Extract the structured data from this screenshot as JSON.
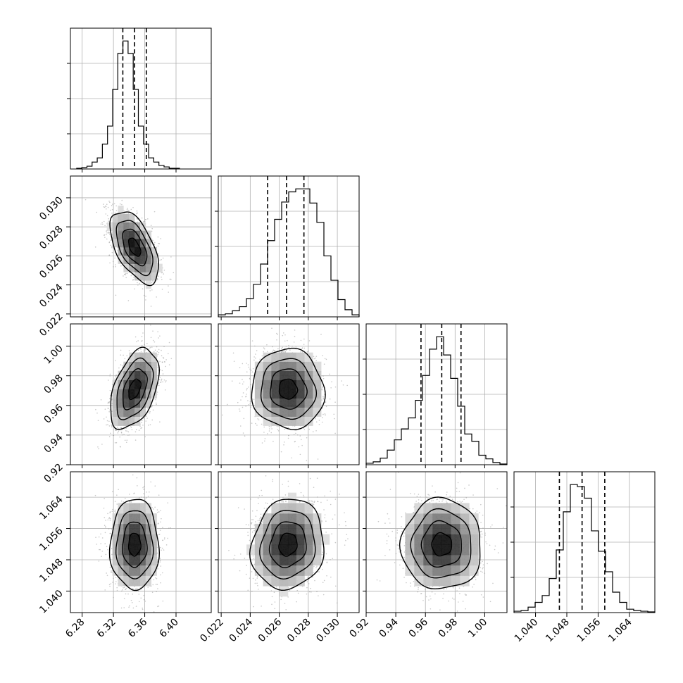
{
  "chart_data": {
    "type": "corner",
    "parameters": [
      {
        "range": [
          6.265,
          6.445
        ],
        "ticks": [
          6.28,
          6.32,
          6.36,
          6.4
        ],
        "tick_labels": [
          "6.28",
          "6.32",
          "6.36",
          "6.40"
        ],
        "quantiles": [
          6.332,
          6.347,
          6.362
        ],
        "hist": {
          "x0": 6.273,
          "dx": 0.00657,
          "counts": [
            1,
            2,
            4,
            10,
            16,
            36,
            62,
            115,
            167,
            185,
            167,
            115,
            62,
            36,
            16,
            10,
            5,
            3,
            1,
            1
          ]
        }
      },
      {
        "range": [
          0.0218,
          0.0315
        ],
        "ticks": [
          0.022,
          0.024,
          0.026,
          0.028,
          0.03
        ],
        "tick_labels": [
          "0.022",
          "0.024",
          "0.026",
          "0.028",
          "0.030"
        ],
        "quantiles": [
          0.0252,
          0.0265,
          0.0277
        ],
        "hist": {
          "x0": 0.0218,
          "dx": 0.000485,
          "counts": [
            2,
            3,
            6,
            10,
            18,
            32,
            52,
            75,
            96,
            113,
            123,
            126,
            126,
            112,
            93,
            60,
            36,
            17,
            7,
            2
          ]
        }
      },
      {
        "range": [
          0.92,
          1.015
        ],
        "ticks": [
          0.92,
          0.94,
          0.96,
          0.98,
          1.0
        ],
        "tick_labels": [
          "0.92",
          "0.94",
          "0.96",
          "0.98",
          "1.00"
        ],
        "quantiles": [
          0.957,
          0.971,
          0.984
        ],
        "hist": {
          "x0": 0.92,
          "dx": 0.00475,
          "counts": [
            2,
            4,
            9,
            20,
            34,
            49,
            64,
            88,
            122,
            158,
            175,
            150,
            118,
            80,
            42,
            32,
            13,
            8,
            3,
            1
          ]
        }
      },
      {
        "range": [
          1.0345,
          1.0705
        ],
        "ticks": [
          1.04,
          1.048,
          1.056,
          1.064
        ],
        "tick_labels": [
          "1.040",
          "1.048",
          "1.056",
          "1.064"
        ],
        "quantiles": [
          1.0461,
          1.0519,
          1.0577
        ],
        "hist": {
          "x0": 1.0345,
          "dx": 0.0018,
          "counts": [
            2,
            3,
            8,
            15,
            25,
            50,
            92,
            148,
            188,
            185,
            168,
            120,
            90,
            60,
            30,
            15,
            5,
            3,
            2,
            1
          ]
        }
      }
    ],
    "pairs": [
      {
        "x": 0,
        "y": 1,
        "mean": [
          6.347,
          0.0266
        ],
        "sd": [
          0.0155,
          0.00125
        ],
        "rho": -0.55
      },
      {
        "x": 0,
        "y": 2,
        "mean": [
          6.347,
          0.971
        ],
        "sd": [
          0.0155,
          0.0135
        ],
        "rho": 0.45
      },
      {
        "x": 1,
        "y": 2,
        "mean": [
          0.0266,
          0.971
        ],
        "sd": [
          0.00125,
          0.0135
        ],
        "rho": -0.05
      },
      {
        "x": 0,
        "y": 3,
        "mean": [
          6.347,
          1.0519
        ],
        "sd": [
          0.0155,
          0.0058
        ],
        "rho": 0.0
      },
      {
        "x": 1,
        "y": 3,
        "mean": [
          0.0266,
          1.0519
        ],
        "sd": [
          0.00125,
          0.0058
        ],
        "rho": 0.1
      },
      {
        "x": 2,
        "y": 3,
        "mean": [
          0.971,
          1.0519
        ],
        "sd": [
          0.0135,
          0.0058
        ],
        "rho": 0.0
      }
    ],
    "grid": true,
    "title": "",
    "axis_labels": []
  },
  "colors": {
    "axes": "#000000",
    "grid": "#b0b0b0",
    "contour": "#000000",
    "scatter": "#9a9a9a"
  }
}
